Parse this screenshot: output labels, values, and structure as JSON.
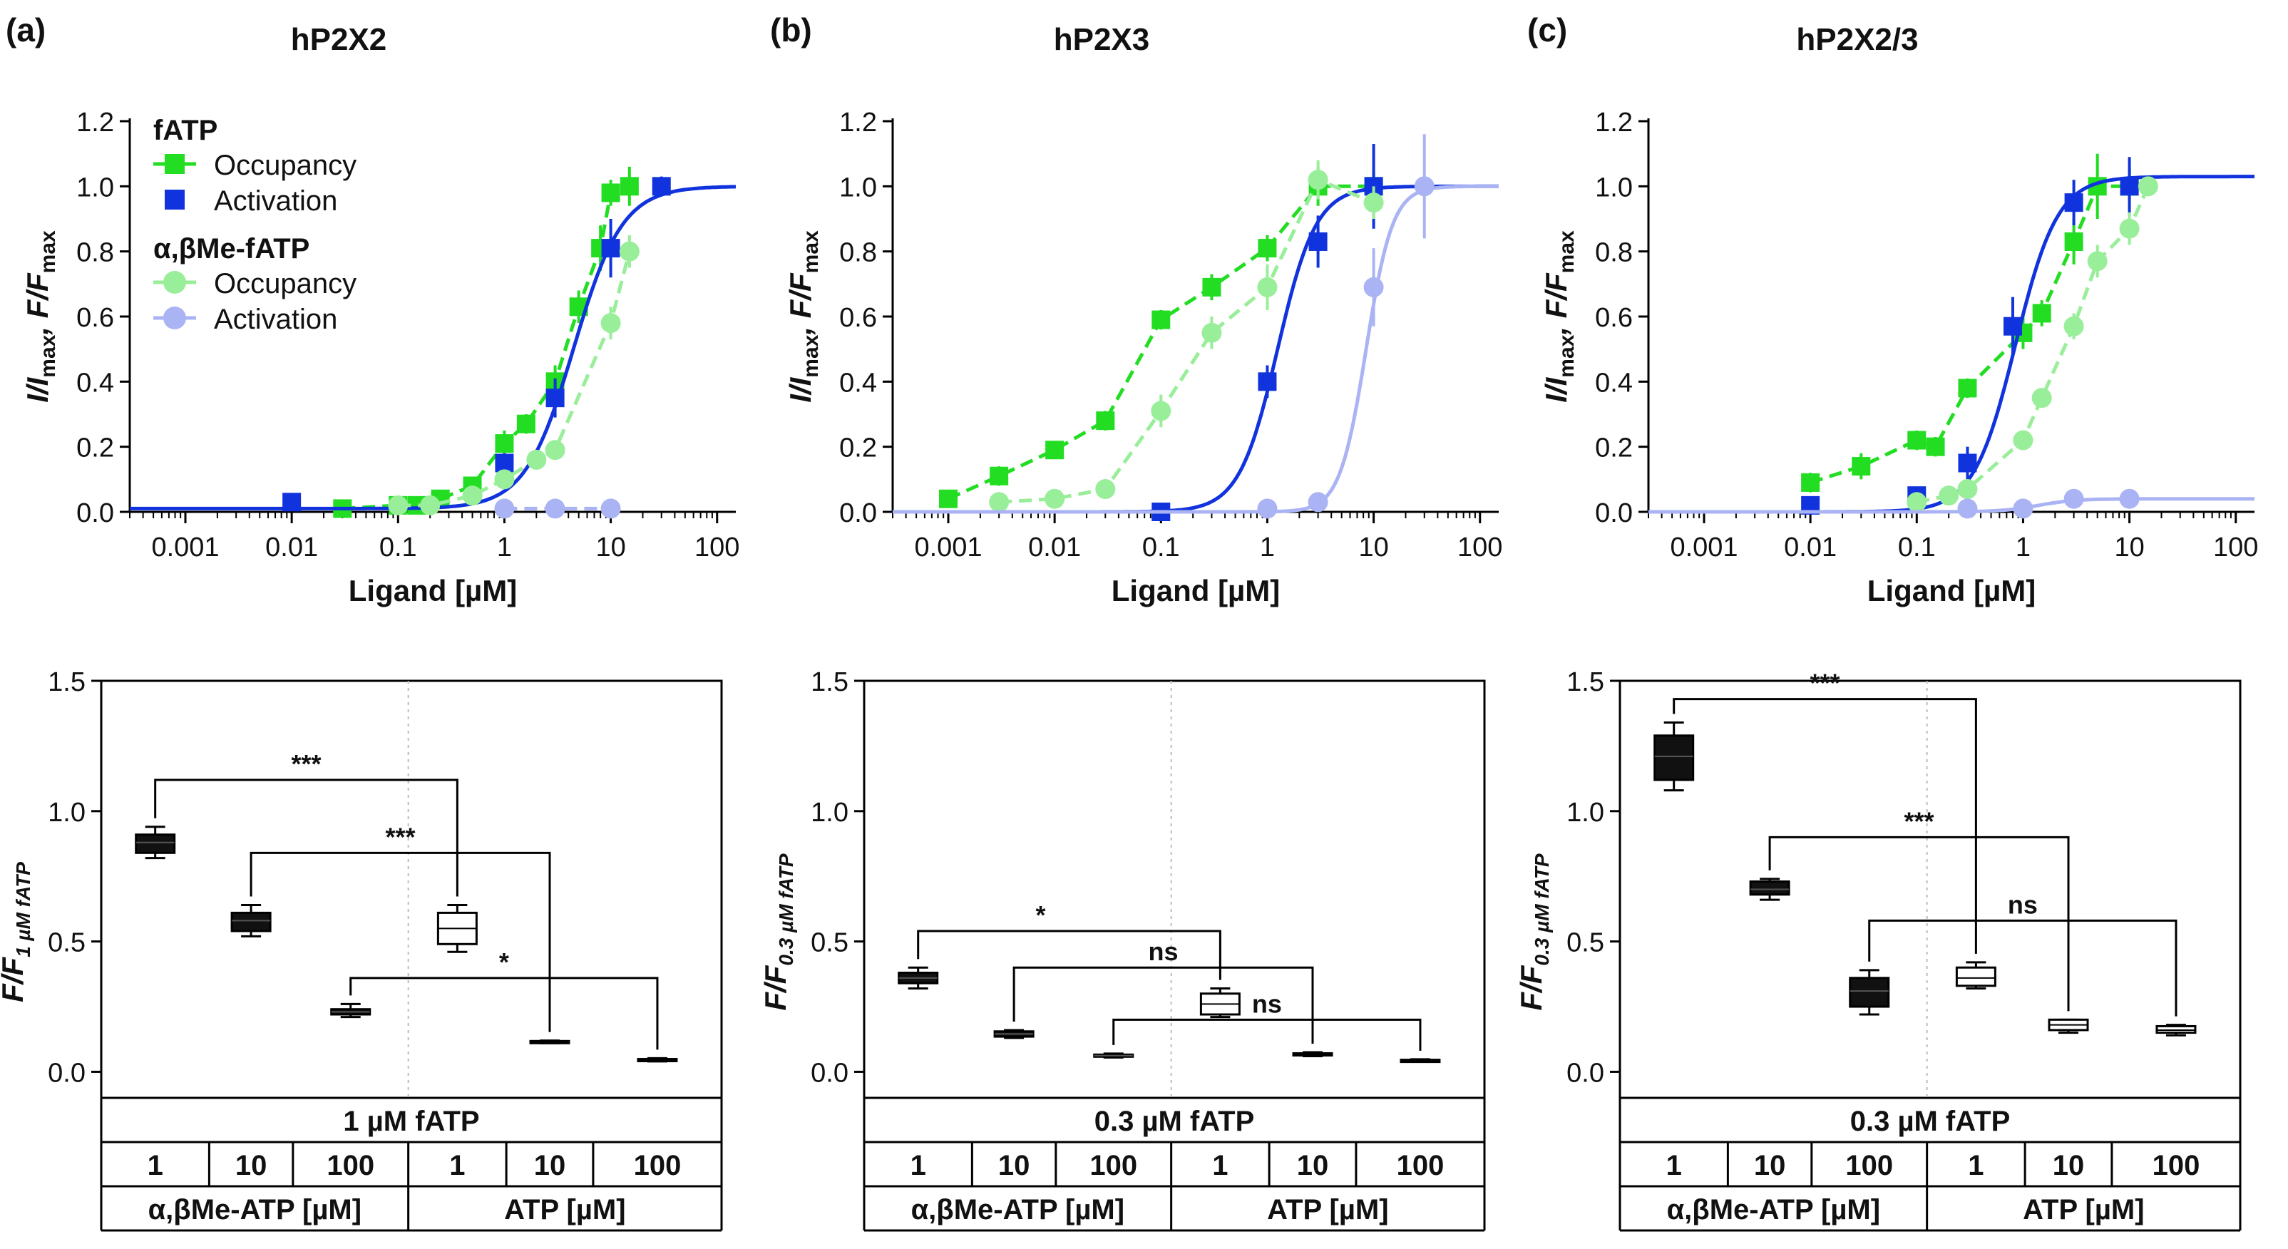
{
  "colors": {
    "fatp_occ": "#22dd22",
    "fatp_act": "#1133dd",
    "ab_occ": "#99ee99",
    "ab_act": "#aab4f4",
    "box_filled": "#111111",
    "box_open": "#ffffff",
    "axis": "#000000"
  },
  "panel_labels": [
    "(a)",
    "(b)",
    "(c)"
  ],
  "legend": {
    "group1": "fATP",
    "group2": "α,βMe-fATP",
    "occupancy": "Occupancy",
    "activation": "Activation"
  },
  "chart_data": [
    {
      "type": "line",
      "scale": "log-x",
      "title": "hP2X2",
      "xlabel": "Ligand [µM]",
      "ylabel_main": "I/I",
      "ylabel_sub1": "max",
      "ylabel_mid": ", F/F",
      "ylabel_sub2": "max",
      "xlim": [
        0.0003,
        150
      ],
      "ylim": [
        0,
        1.2
      ],
      "xticks": [
        0.001,
        0.01,
        0.1,
        1,
        10,
        100
      ],
      "xtick_labels": [
        "0.001",
        "0.01",
        "0.1",
        "1",
        "10",
        "100"
      ],
      "yticks": [
        0.0,
        0.2,
        0.4,
        0.6,
        0.8,
        1.0,
        1.2
      ],
      "ytick_labels": [
        "0.0",
        "0.2",
        "0.4",
        "0.6",
        "0.8",
        "1.0",
        "1.2"
      ],
      "series": [
        {
          "name": "fATP Occupancy",
          "color_key": "fatp_occ",
          "marker": "square",
          "connect": true,
          "x": [
            0.03,
            0.1,
            0.15,
            0.25,
            0.5,
            1,
            1.6,
            3,
            5,
            8,
            10,
            15
          ],
          "y": [
            0.01,
            0.02,
            0.02,
            0.04,
            0.08,
            0.21,
            0.27,
            0.4,
            0.63,
            0.81,
            0.98,
            1.0
          ],
          "err": [
            0.01,
            0.01,
            0.01,
            0.02,
            0.02,
            0.04,
            0.03,
            0.05,
            0.05,
            0.07,
            0.04,
            0.06
          ]
        },
        {
          "name": "fATP Activation",
          "color_key": "fatp_act",
          "marker": "square",
          "connect": false,
          "x": [
            0.01,
            1,
            3,
            10,
            30
          ],
          "y": [
            0.03,
            0.15,
            0.35,
            0.81,
            1.0
          ],
          "err": [
            0.02,
            0.03,
            0.06,
            0.09,
            0.03
          ],
          "fit": {
            "bottom": 0.01,
            "top": 1.0,
            "ec50": 4.5,
            "hill": 1.9
          }
        },
        {
          "name": "α,βMe-fATP Occupancy",
          "color_key": "ab_occ",
          "marker": "circle",
          "connect": true,
          "x": [
            0.1,
            0.2,
            0.5,
            1,
            2,
            3,
            10,
            15
          ],
          "y": [
            0.02,
            0.02,
            0.05,
            0.1,
            0.16,
            0.19,
            0.58,
            0.8
          ],
          "err": [
            0.01,
            0.01,
            0.02,
            0.02,
            0.03,
            0.03,
            0.05,
            0.05
          ]
        },
        {
          "name": "α,βMe-fATP Activation",
          "color_key": "ab_act",
          "marker": "circle",
          "connect": true,
          "x": [
            1,
            3,
            10
          ],
          "y": [
            0.01,
            0.01,
            0.01
          ],
          "err": [
            0.0,
            0.0,
            0.0
          ]
        }
      ]
    },
    {
      "type": "line",
      "scale": "log-x",
      "title": "hP2X3",
      "xlabel": "Ligand [µM]",
      "ylabel_main": "I/I",
      "ylabel_sub1": "max",
      "ylabel_mid": ", F/F",
      "ylabel_sub2": "max",
      "xlim": [
        0.0003,
        150
      ],
      "ylim": [
        0,
        1.2
      ],
      "xticks": [
        0.001,
        0.01,
        0.1,
        1,
        10,
        100
      ],
      "xtick_labels": [
        "0.001",
        "0.01",
        "0.1",
        "1",
        "10",
        "100"
      ],
      "yticks": [
        0.0,
        0.2,
        0.4,
        0.6,
        0.8,
        1.0,
        1.2
      ],
      "ytick_labels": [
        "0.0",
        "0.2",
        "0.4",
        "0.6",
        "0.8",
        "1.0",
        "1.2"
      ],
      "series": [
        {
          "name": "fATP Occupancy",
          "color_key": "fatp_occ",
          "marker": "square",
          "connect": true,
          "x": [
            0.001,
            0.003,
            0.01,
            0.03,
            0.1,
            0.3,
            1,
            3,
            10
          ],
          "y": [
            0.04,
            0.11,
            0.19,
            0.28,
            0.59,
            0.69,
            0.81,
            1.0,
            1.0
          ],
          "err": [
            0.02,
            0.03,
            0.02,
            0.03,
            0.03,
            0.04,
            0.04,
            0.06,
            0.05
          ]
        },
        {
          "name": "fATP Activation",
          "color_key": "fatp_act",
          "marker": "square",
          "connect": false,
          "x": [
            0.1,
            1,
            3,
            10
          ],
          "y": [
            0.0,
            0.4,
            0.83,
            1.0
          ],
          "err": [
            0.02,
            0.05,
            0.08,
            0.13
          ],
          "fit": {
            "bottom": 0.0,
            "top": 1.0,
            "ec50": 1.25,
            "hill": 2.4
          }
        },
        {
          "name": "α,βMe-fATP Occupancy",
          "color_key": "ab_occ",
          "marker": "circle",
          "connect": true,
          "x": [
            0.003,
            0.01,
            0.03,
            0.1,
            0.3,
            1,
            3,
            10
          ],
          "y": [
            0.03,
            0.04,
            0.07,
            0.31,
            0.55,
            0.69,
            1.02,
            0.95
          ],
          "err": [
            0.02,
            0.02,
            0.02,
            0.05,
            0.05,
            0.07,
            0.06,
            0.05
          ]
        },
        {
          "name": "α,βMe-fATP Activation",
          "color_key": "ab_act",
          "marker": "circle",
          "connect": false,
          "x": [
            1,
            3,
            10,
            30
          ],
          "y": [
            0.01,
            0.03,
            0.69,
            1.0
          ],
          "err": [
            0.01,
            0.02,
            0.12,
            0.16
          ],
          "fit": {
            "bottom": 0.0,
            "top": 1.0,
            "ec50": 8.5,
            "hill": 3.5
          }
        }
      ]
    },
    {
      "type": "line",
      "scale": "log-x",
      "title": "hP2X2/3",
      "xlabel": "Ligand [µM]",
      "ylabel_main": "I/I",
      "ylabel_sub1": "max",
      "ylabel_mid": ", F/F",
      "ylabel_sub2": "max",
      "xlim": [
        0.0003,
        150
      ],
      "ylim": [
        0,
        1.2
      ],
      "xticks": [
        0.001,
        0.01,
        0.1,
        1,
        10,
        100
      ],
      "xtick_labels": [
        "0.001",
        "0.01",
        "0.1",
        "1",
        "10",
        "100"
      ],
      "yticks": [
        0.0,
        0.2,
        0.4,
        0.6,
        0.8,
        1.0,
        1.2
      ],
      "ytick_labels": [
        "0.0",
        "0.2",
        "0.4",
        "0.6",
        "0.8",
        "1.0",
        "1.2"
      ],
      "series": [
        {
          "name": "fATP Occupancy",
          "color_key": "fatp_occ",
          "marker": "square",
          "connect": true,
          "x": [
            0.01,
            0.03,
            0.1,
            0.15,
            0.3,
            1,
            1.5,
            3,
            5,
            10
          ],
          "y": [
            0.09,
            0.14,
            0.22,
            0.2,
            0.38,
            0.55,
            0.61,
            0.83,
            1.0,
            1.0
          ],
          "err": [
            0.03,
            0.04,
            0.03,
            0.03,
            0.03,
            0.05,
            0.04,
            0.07,
            0.1,
            0.06
          ]
        },
        {
          "name": "fATP Activation",
          "color_key": "fatp_act",
          "marker": "square",
          "connect": false,
          "x": [
            0.01,
            0.1,
            0.3,
            0.8,
            3,
            10
          ],
          "y": [
            0.02,
            0.05,
            0.15,
            0.57,
            0.95,
            1.0
          ],
          "err": [
            0.01,
            0.02,
            0.05,
            0.09,
            0.07,
            0.09
          ],
          "fit": {
            "bottom": 0.0,
            "top": 1.03,
            "ec50": 0.85,
            "hill": 2.2
          }
        },
        {
          "name": "α,βMe-fATP Occupancy",
          "color_key": "ab_occ",
          "marker": "circle",
          "connect": true,
          "x": [
            0.1,
            0.2,
            0.3,
            1,
            1.5,
            3,
            5,
            10,
            15
          ],
          "y": [
            0.03,
            0.05,
            0.07,
            0.22,
            0.35,
            0.57,
            0.77,
            0.87,
            1.0
          ],
          "err": [
            0.01,
            0.02,
            0.02,
            0.02,
            0.03,
            0.04,
            0.05,
            0.05,
            0.03
          ]
        },
        {
          "name": "α,βMe-fATP Activation",
          "color_key": "ab_act",
          "marker": "circle",
          "connect": false,
          "x": [
            0.3,
            1,
            3,
            10
          ],
          "y": [
            0.01,
            0.01,
            0.04,
            0.04
          ],
          "err": [
            0.01,
            0.01,
            0.01,
            0.01
          ],
          "fit": {
            "bottom": 0.0,
            "top": 0.04,
            "ec50": 1.4,
            "hill": 2.5
          }
        }
      ]
    },
    {
      "type": "box",
      "ylabel_main": "F/F",
      "ylabel_sub": "1 µM fATP",
      "ylim": [
        -0.1,
        1.5
      ],
      "yticks": [
        0.0,
        0.5,
        1.0,
        1.5
      ],
      "ytick_labels": [
        "0.0",
        "0.5",
        "1.0",
        "1.5"
      ],
      "condition": "1 µM fATP",
      "concentrations": [
        "1",
        "10",
        "100",
        "1",
        "10",
        "100"
      ],
      "groups": [
        "α,βMe-ATP [µM]",
        "ATP [µM]"
      ],
      "boxes": [
        {
          "min": 0.82,
          "q1": 0.84,
          "median": 0.88,
          "q3": 0.91,
          "max": 0.94,
          "filled": true
        },
        {
          "min": 0.52,
          "q1": 0.54,
          "median": 0.58,
          "q3": 0.61,
          "max": 0.64,
          "filled": true
        },
        {
          "min": 0.21,
          "q1": 0.22,
          "median": 0.23,
          "q3": 0.24,
          "max": 0.26,
          "filled": true
        },
        {
          "min": 0.46,
          "q1": 0.49,
          "median": 0.55,
          "q3": 0.61,
          "max": 0.64,
          "filled": false
        },
        {
          "min": 0.11,
          "q1": 0.112,
          "median": 0.115,
          "q3": 0.118,
          "max": 0.12,
          "filled": false
        },
        {
          "min": 0.04,
          "q1": 0.043,
          "median": 0.046,
          "q3": 0.049,
          "max": 0.052,
          "filled": false
        }
      ],
      "significance": [
        {
          "from": 0,
          "to": 3,
          "level": 1.12,
          "label": "***"
        },
        {
          "from": 1,
          "to": 4,
          "level": 0.84,
          "label": "***"
        },
        {
          "from": 2,
          "to": 5,
          "level": 0.36,
          "label": "*"
        }
      ]
    },
    {
      "type": "box",
      "ylabel_main": "F/F",
      "ylabel_sub": "0.3 µM fATP",
      "ylim": [
        -0.1,
        1.5
      ],
      "yticks": [
        0.0,
        0.5,
        1.0,
        1.5
      ],
      "ytick_labels": [
        "0.0",
        "0.5",
        "1.0",
        "1.5"
      ],
      "condition": "0.3 µM fATP",
      "concentrations": [
        "1",
        "10",
        "100",
        "1",
        "10",
        "100"
      ],
      "groups": [
        "α,βMe-ATP [µM]",
        "ATP [µM]"
      ],
      "boxes": [
        {
          "min": 0.32,
          "q1": 0.34,
          "median": 0.36,
          "q3": 0.38,
          "max": 0.4,
          "filled": true
        },
        {
          "min": 0.13,
          "q1": 0.135,
          "median": 0.145,
          "q3": 0.155,
          "max": 0.16,
          "filled": true
        },
        {
          "min": 0.055,
          "q1": 0.058,
          "median": 0.062,
          "q3": 0.066,
          "max": 0.07,
          "filled": true
        },
        {
          "min": 0.21,
          "q1": 0.22,
          "median": 0.26,
          "q3": 0.3,
          "max": 0.32,
          "filled": false
        },
        {
          "min": 0.06,
          "q1": 0.063,
          "median": 0.067,
          "q3": 0.071,
          "max": 0.075,
          "filled": false
        },
        {
          "min": 0.04,
          "q1": 0.042,
          "median": 0.044,
          "q3": 0.046,
          "max": 0.048,
          "filled": false
        }
      ],
      "significance": [
        {
          "from": 0,
          "to": 3,
          "level": 0.54,
          "label": "*"
        },
        {
          "from": 1,
          "to": 4,
          "level": 0.4,
          "label": "ns"
        },
        {
          "from": 2,
          "to": 5,
          "level": 0.2,
          "label": "ns"
        }
      ]
    },
    {
      "type": "box",
      "ylabel_main": "F/F",
      "ylabel_sub": "0.3 µM fATP",
      "ylim": [
        -0.1,
        1.5
      ],
      "yticks": [
        0.0,
        0.5,
        1.0,
        1.5
      ],
      "ytick_labels": [
        "0.0",
        "0.5",
        "1.0",
        "1.5"
      ],
      "condition": "0.3 µM fATP",
      "concentrations": [
        "1",
        "10",
        "100",
        "1",
        "10",
        "100"
      ],
      "groups": [
        "α,βMe-ATP [µM]",
        "ATP [µM]"
      ],
      "boxes": [
        {
          "min": 1.08,
          "q1": 1.12,
          "median": 1.21,
          "q3": 1.29,
          "max": 1.34,
          "filled": true
        },
        {
          "min": 0.66,
          "q1": 0.68,
          "median": 0.7,
          "q3": 0.73,
          "max": 0.74,
          "filled": true
        },
        {
          "min": 0.22,
          "q1": 0.25,
          "median": 0.31,
          "q3": 0.36,
          "max": 0.39,
          "filled": true
        },
        {
          "min": 0.32,
          "q1": 0.33,
          "median": 0.36,
          "q3": 0.4,
          "max": 0.42,
          "filled": false
        },
        {
          "min": 0.15,
          "q1": 0.16,
          "median": 0.18,
          "q3": 0.2,
          "max": 0.2,
          "filled": false
        },
        {
          "min": 0.14,
          "q1": 0.15,
          "median": 0.16,
          "q3": 0.175,
          "max": 0.18,
          "filled": false
        }
      ],
      "significance": [
        {
          "from": 0,
          "to": 3,
          "level": 1.43,
          "label": "***"
        },
        {
          "from": 1,
          "to": 4,
          "level": 0.9,
          "label": "***"
        },
        {
          "from": 2,
          "to": 5,
          "level": 0.58,
          "label": "ns"
        }
      ]
    }
  ]
}
